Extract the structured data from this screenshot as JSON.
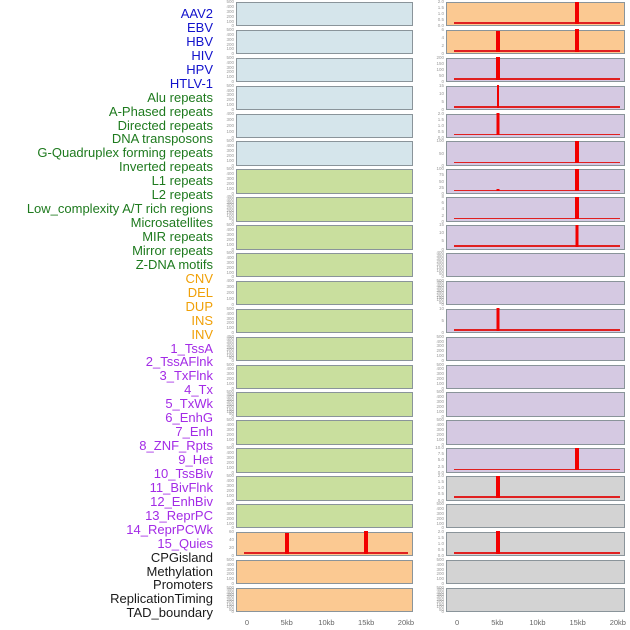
{
  "colors": {
    "virus": {
      "label": "#1212cc",
      "bg": "#d5e5eb"
    },
    "repeat": {
      "label": "#1e7a1e",
      "bg": "#c9df9e"
    },
    "sv": {
      "label": "#f0a007",
      "bg": "#fbc992"
    },
    "chromhmm": {
      "label": "#a32be6",
      "bg": "#d5c9e2"
    },
    "other": {
      "label": "#1a1a1a",
      "bg": "#d3d3d3"
    },
    "line": "#f20000",
    "panel_border": "#8a949a",
    "tick_text": "#999999",
    "axis_text": "#666666"
  },
  "chart_data": {
    "type": "line",
    "title": "",
    "layout": "small-multiples; 44 genomic feature tracks listed in left legend, drawn column-major in 2 columns of 22 panels; each panel shows feature density (red line) across a 0-20kb window",
    "x": {
      "label": "",
      "range_kb": [
        0,
        20
      ],
      "ticks": [
        "0",
        "5kb",
        "10kb",
        "15kb",
        "20kb"
      ],
      "tick_kb": [
        0,
        5,
        10,
        15,
        20
      ]
    },
    "tracks": [
      {
        "label": "AAV2",
        "category": "virus",
        "col": "left",
        "yticks": [
          "500",
          "400",
          "300",
          "200",
          "100",
          "0"
        ],
        "baseline": false,
        "spikes": []
      },
      {
        "label": "EBV",
        "category": "virus",
        "col": "left",
        "yticks": [
          "500",
          "400",
          "300",
          "200",
          "100",
          "0"
        ],
        "baseline": false,
        "spikes": []
      },
      {
        "label": "HBV",
        "category": "virus",
        "col": "left",
        "yticks": [
          "500",
          "400",
          "300",
          "200",
          "100",
          "0"
        ],
        "baseline": false,
        "spikes": []
      },
      {
        "label": "HIV",
        "category": "virus",
        "col": "left",
        "yticks": [
          "500",
          "400",
          "300",
          "200",
          "100",
          "0"
        ],
        "baseline": false,
        "spikes": []
      },
      {
        "label": "HPV",
        "category": "virus",
        "col": "left",
        "yticks": [
          "400",
          "300",
          "200",
          "100",
          "0"
        ],
        "baseline": false,
        "spikes": []
      },
      {
        "label": "HTLV-1",
        "category": "virus",
        "col": "left",
        "yticks": [
          "500",
          "400",
          "300",
          "200",
          "100",
          "0"
        ],
        "baseline": false,
        "spikes": []
      },
      {
        "label": "Alu repeats",
        "category": "repeat",
        "col": "left",
        "yticks": [
          "500",
          "400",
          "300",
          "200",
          "100",
          "0"
        ],
        "baseline": false,
        "spikes": []
      },
      {
        "label": "A-Phased repeats",
        "category": "repeat",
        "col": "left",
        "yticks": [
          "450",
          "400",
          "350",
          "300",
          "250",
          "200",
          "150",
          "100",
          "50",
          "0"
        ],
        "baseline": false,
        "spikes": []
      },
      {
        "label": "Directed repeats",
        "category": "repeat",
        "col": "left",
        "yticks": [
          "500",
          "400",
          "300",
          "200",
          "100",
          "0"
        ],
        "baseline": false,
        "spikes": []
      },
      {
        "label": "DNA transposons",
        "category": "repeat",
        "col": "left",
        "yticks": [
          "500",
          "400",
          "300",
          "200",
          "100",
          "0"
        ],
        "baseline": false,
        "spikes": []
      },
      {
        "label": "G-Quadruplex forming repeats",
        "category": "repeat",
        "col": "left",
        "yticks": [
          "400",
          "300",
          "200",
          "100",
          "0"
        ],
        "baseline": false,
        "spikes": []
      },
      {
        "label": "Inverted repeats",
        "category": "repeat",
        "col": "left",
        "yticks": [
          "500",
          "400",
          "300",
          "200",
          "100",
          "0"
        ],
        "baseline": false,
        "spikes": []
      },
      {
        "label": "L1 repeats",
        "category": "repeat",
        "col": "left",
        "yticks": [
          "450",
          "400",
          "350",
          "300",
          "250",
          "200",
          "150",
          "100",
          "50",
          "0"
        ],
        "baseline": false,
        "spikes": []
      },
      {
        "label": "L2 repeats",
        "category": "repeat",
        "col": "left",
        "yticks": [
          "500",
          "400",
          "300",
          "200",
          "100",
          "0"
        ],
        "baseline": false,
        "spikes": []
      },
      {
        "label": "Low_complexity A/T rich regions",
        "category": "repeat",
        "col": "left",
        "yticks": [
          "500",
          "450",
          "400",
          "350",
          "300",
          "250",
          "200",
          "150",
          "100",
          "50",
          "0"
        ],
        "baseline": false,
        "spikes": []
      },
      {
        "label": "Microsatellites",
        "category": "repeat",
        "col": "left",
        "yticks": [
          "500",
          "400",
          "300",
          "200",
          "100",
          "0"
        ],
        "baseline": false,
        "spikes": []
      },
      {
        "label": "MIR repeats",
        "category": "repeat",
        "col": "left",
        "yticks": [
          "500",
          "400",
          "300",
          "200",
          "100",
          "0"
        ],
        "baseline": false,
        "spikes": []
      },
      {
        "label": "Mirror repeats",
        "category": "repeat",
        "col": "left",
        "yticks": [
          "500",
          "400",
          "300",
          "200",
          "100",
          "0"
        ],
        "baseline": false,
        "spikes": []
      },
      {
        "label": "Z-DNA motifs",
        "category": "repeat",
        "col": "left",
        "yticks": [
          "500",
          "400",
          "300",
          "200",
          "100",
          "0"
        ],
        "baseline": false,
        "spikes": []
      },
      {
        "label": "CNV",
        "category": "sv",
        "col": "left",
        "yticks": [
          "60",
          "40",
          "20",
          "0"
        ],
        "baseline": true,
        "spikes": [
          {
            "kb": 5,
            "value": 60,
            "h": 0.93,
            "w": 4
          },
          {
            "kb": 15,
            "value": 64,
            "h": 1.0,
            "w": 4
          }
        ]
      },
      {
        "label": "DEL",
        "category": "sv",
        "col": "left",
        "yticks": [
          "500",
          "400",
          "300",
          "200",
          "100",
          "0"
        ],
        "baseline": false,
        "spikes": []
      },
      {
        "label": "DUP",
        "category": "sv",
        "col": "left",
        "yticks": [
          "500",
          "450",
          "400",
          "350",
          "300",
          "250",
          "200",
          "150",
          "100",
          "50",
          "0"
        ],
        "baseline": false,
        "spikes": []
      },
      {
        "label": "INS",
        "category": "sv",
        "col": "right",
        "yticks": [
          "2.0",
          "1.5",
          "1.0",
          "0.5",
          "0.0"
        ],
        "baseline": true,
        "spikes": [
          {
            "kb": 15,
            "value": 2.1,
            "h": 1.0,
            "w": 4
          }
        ]
      },
      {
        "label": "INV",
        "category": "sv",
        "col": "right",
        "yticks": [
          "6",
          "4",
          "2",
          "0"
        ],
        "baseline": true,
        "spikes": [
          {
            "kb": 5,
            "value": 5.6,
            "h": 0.93,
            "w": 4
          },
          {
            "kb": 15,
            "value": 6.2,
            "h": 1.0,
            "w": 4
          }
        ]
      },
      {
        "label": "1_TssA",
        "category": "chromhmm",
        "col": "right",
        "yticks": [
          "200",
          "150",
          "100",
          "50",
          "0"
        ],
        "baseline": true,
        "spikes": [
          {
            "kb": 5,
            "value": 210,
            "h": 1.0,
            "w": 4
          }
        ]
      },
      {
        "label": "2_TssAFlnk",
        "category": "chromhmm",
        "col": "right",
        "yticks": [
          "15",
          "10",
          "5",
          "0"
        ],
        "baseline": true,
        "spikes": [
          {
            "kb": 5,
            "value": 15,
            "h": 1.0,
            "w": 2
          }
        ]
      },
      {
        "label": "3_TxFlnk",
        "category": "chromhmm",
        "col": "right",
        "yticks": [
          "2.0",
          "1.5",
          "1.0",
          "0.5",
          "0.0"
        ],
        "baseline": true,
        "spikes": [
          {
            "kb": 5,
            "value": 2.1,
            "h": 1.0,
            "w": 3
          }
        ]
      },
      {
        "label": "4_Tx",
        "category": "chromhmm",
        "col": "right",
        "yticks": [
          "100",
          "50",
          "0"
        ],
        "baseline": true,
        "spikes": [
          {
            "kb": 15,
            "value": 105,
            "h": 1.0,
            "w": 4
          }
        ]
      },
      {
        "label": "5_TxWk",
        "category": "chromhmm",
        "col": "right",
        "yticks": [
          "100",
          "75",
          "50",
          "25",
          "0"
        ],
        "baseline": true,
        "spikes": [
          {
            "kb": 5,
            "value": 12,
            "h": 0.12,
            "w": 3
          },
          {
            "kb": 15,
            "value": 105,
            "h": 1.0,
            "w": 4
          }
        ]
      },
      {
        "label": "6_EnhG",
        "category": "chromhmm",
        "col": "right",
        "yticks": [
          "8",
          "6",
          "4",
          "2",
          "0"
        ],
        "baseline": true,
        "spikes": [
          {
            "kb": 15,
            "value": 8.3,
            "h": 1.0,
            "w": 4
          }
        ]
      },
      {
        "label": "7_Enh",
        "category": "chromhmm",
        "col": "right",
        "yticks": [
          "15",
          "10",
          "5",
          "0"
        ],
        "baseline": true,
        "spikes": [
          {
            "kb": 15,
            "value": 15.5,
            "h": 1.0,
            "w": 3
          }
        ]
      },
      {
        "label": "8_ZNF_Rpts",
        "category": "chromhmm",
        "col": "right",
        "yticks": [
          "400",
          "350",
          "300",
          "250",
          "200",
          "150",
          "100",
          "50",
          "0"
        ],
        "baseline": false,
        "spikes": []
      },
      {
        "label": "9_Het",
        "category": "chromhmm",
        "col": "right",
        "yticks": [
          "500",
          "450",
          "400",
          "350",
          "300",
          "250",
          "200",
          "150",
          "100",
          "50",
          "0"
        ],
        "baseline": false,
        "spikes": []
      },
      {
        "label": "10_TssBiv",
        "category": "chromhmm",
        "col": "right",
        "yticks": [
          "10",
          "5",
          "0"
        ],
        "baseline": true,
        "spikes": [
          {
            "kb": 5,
            "value": 10.5,
            "h": 1.0,
            "w": 3
          }
        ]
      },
      {
        "label": "11_BivFlnk",
        "category": "chromhmm",
        "col": "right",
        "yticks": [
          "500",
          "400",
          "300",
          "200",
          "100",
          "0"
        ],
        "baseline": false,
        "spikes": []
      },
      {
        "label": "12_EnhBiv",
        "category": "chromhmm",
        "col": "right",
        "yticks": [
          "500",
          "400",
          "300",
          "200",
          "100",
          "0"
        ],
        "baseline": false,
        "spikes": []
      },
      {
        "label": "13_ReprPC",
        "category": "chromhmm",
        "col": "right",
        "yticks": [
          "500",
          "400",
          "300",
          "200",
          "100",
          "0"
        ],
        "baseline": false,
        "spikes": []
      },
      {
        "label": "14_ReprPCWk",
        "category": "chromhmm",
        "col": "right",
        "yticks": [
          "500",
          "400",
          "300",
          "200",
          "100",
          "0"
        ],
        "baseline": false,
        "spikes": []
      },
      {
        "label": "15_Quies",
        "category": "chromhmm",
        "col": "right",
        "yticks": [
          "10.0",
          "7.5",
          "5.0",
          "2.5",
          "0.0"
        ],
        "baseline": true,
        "spikes": [
          {
            "kb": 15,
            "value": 10.4,
            "h": 1.0,
            "w": 4
          }
        ]
      },
      {
        "label": "CPGisland",
        "category": "other",
        "col": "right",
        "yticks": [
          "2.0",
          "1.5",
          "1.0",
          "0.5",
          "0.0"
        ],
        "baseline": true,
        "spikes": [
          {
            "kb": 5,
            "value": 2.1,
            "h": 1.0,
            "w": 4
          }
        ]
      },
      {
        "label": "Methylation",
        "category": "other",
        "col": "right",
        "yticks": [
          "500",
          "400",
          "300",
          "200",
          "100",
          "0"
        ],
        "baseline": false,
        "spikes": []
      },
      {
        "label": "Promoters",
        "category": "other",
        "col": "right",
        "yticks": [
          "2.0",
          "1.5",
          "1.0",
          "0.5",
          "0.0"
        ],
        "baseline": true,
        "spikes": [
          {
            "kb": 5,
            "value": 2.1,
            "h": 1.0,
            "w": 4
          }
        ]
      },
      {
        "label": "ReplicationTiming",
        "category": "other",
        "col": "right",
        "yticks": [
          "500",
          "400",
          "300",
          "200",
          "100",
          "0"
        ],
        "baseline": false,
        "spikes": []
      },
      {
        "label": "TAD_boundary",
        "category": "other",
        "col": "right",
        "yticks": [
          "500",
          "450",
          "400",
          "350",
          "300",
          "250",
          "200",
          "150",
          "100",
          "50",
          "0"
        ],
        "baseline": false,
        "spikes": []
      }
    ]
  }
}
